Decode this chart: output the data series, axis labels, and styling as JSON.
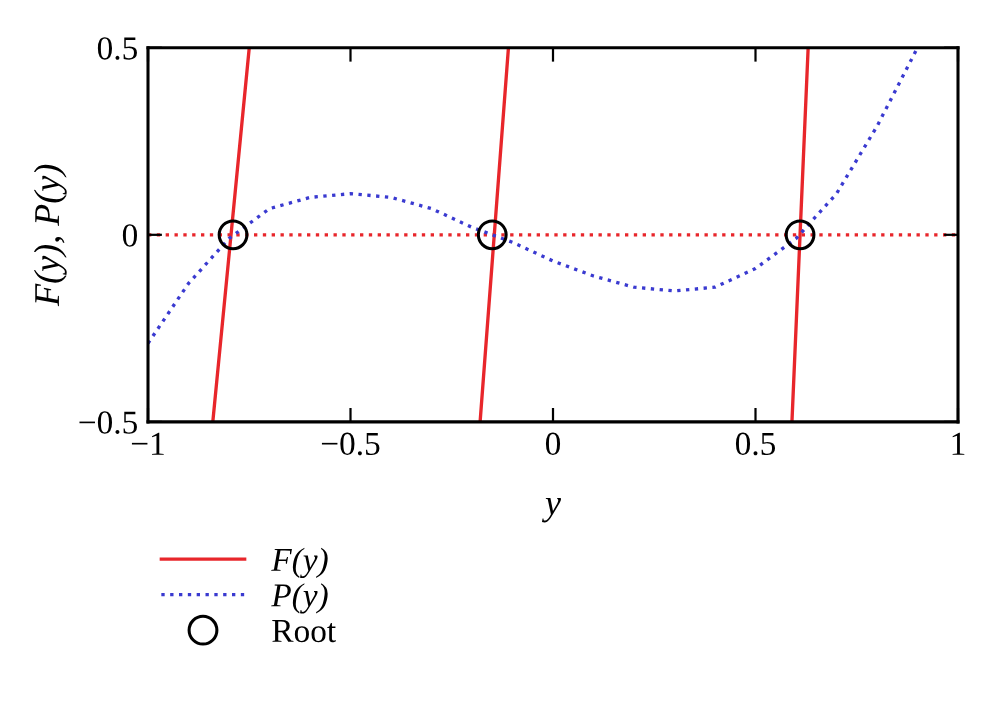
{
  "chart_data": {
    "type": "line",
    "xlabel": "y",
    "ylabel": "F(y), P(y)",
    "xlim": [
      -1,
      1
    ],
    "ylim": [
      -0.5,
      0.5
    ],
    "xticks": [
      -1,
      -0.5,
      0,
      0.5,
      1
    ],
    "yticks": [
      -0.5,
      0,
      0.5
    ],
    "grid": false,
    "legend": "bottom left",
    "series": [
      {
        "name": "F(y)",
        "color": "#e8262b",
        "line_style": "solid",
        "marker": "none",
        "x": [
          -0.84,
          -0.75,
          -0.47,
          -0.18,
          -0.11,
          0.3,
          0.59,
          0.63
        ],
        "values": [
          -0.5,
          0.5,
          null,
          -0.5,
          0.5,
          null,
          -0.5,
          0.5
        ]
      },
      {
        "name": "P(y)",
        "color": "#3a3ad0",
        "line_style": "dotted",
        "marker": "none",
        "x": [
          -1,
          -0.9,
          -0.8,
          -0.7,
          -0.6,
          -0.5,
          -0.4,
          -0.3,
          -0.2,
          -0.1,
          0,
          0.1,
          0.2,
          0.3,
          0.4,
          0.5,
          0.6,
          0.7,
          0.8,
          0.9
        ],
        "values": [
          -0.29,
          -0.13,
          -0.01,
          0.07,
          0.1,
          0.11,
          0.1,
          0.07,
          0.02,
          -0.02,
          -0.07,
          -0.11,
          -0.14,
          -0.15,
          -0.14,
          -0.09,
          -0.01,
          0.11,
          0.29,
          0.5
        ]
      },
      {
        "name": "Root",
        "type": "scatter",
        "color": "#000000",
        "marker": "circle",
        "x": [
          -0.79,
          -0.15,
          0.61
        ],
        "values": [
          0,
          0,
          0
        ]
      }
    ],
    "ref_lines": [
      {
        "axis": "y",
        "value": 0,
        "color": "#e8262b",
        "line_style": "dotted"
      }
    ]
  }
}
